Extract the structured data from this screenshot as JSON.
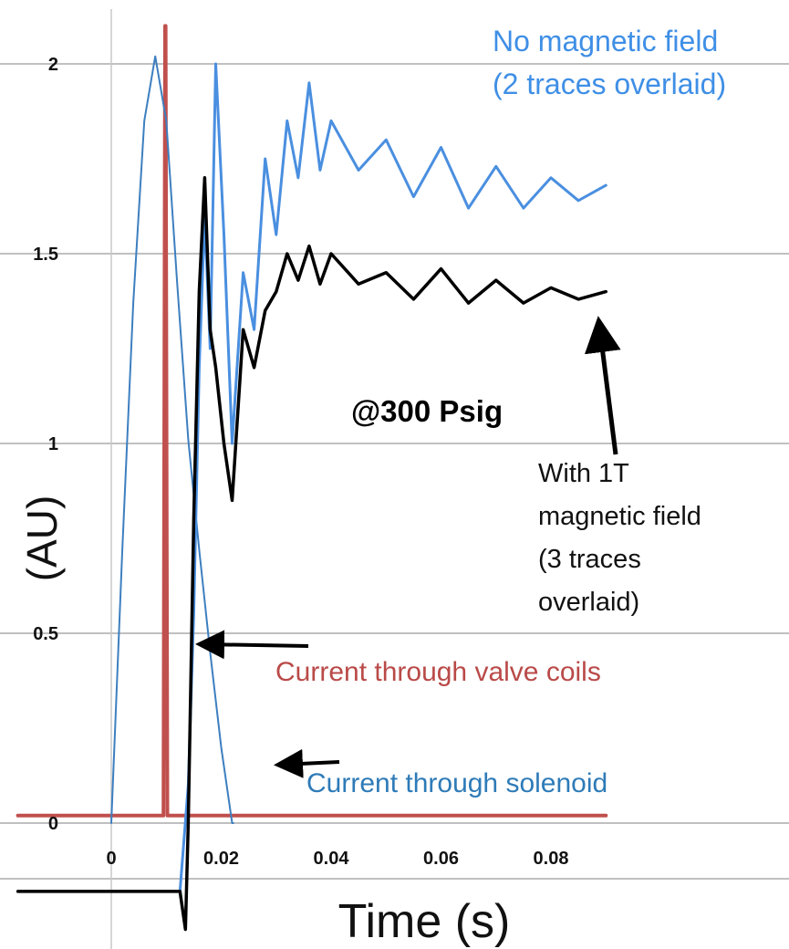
{
  "chart_data": {
    "type": "line",
    "xlabel": "Time (s)",
    "ylabel": "(AU)",
    "xlim": [
      -0.017,
      0.09
    ],
    "ylim": [
      -0.3,
      2.15
    ],
    "x_ticks": [
      "0",
      "0.02",
      "0.04",
      "0.06",
      "0.08"
    ],
    "x_tick_values": [
      0,
      0.02,
      0.04,
      0.06,
      0.08
    ],
    "y_ticks": [
      "0",
      "0.5",
      "1",
      "1.5",
      "2"
    ],
    "y_tick_values": [
      0,
      0.5,
      1,
      1.5,
      2
    ],
    "grid": true,
    "series": [
      {
        "key": "solenoid",
        "name": "Current through solenoid",
        "color": "#3d7fc0",
        "x": [
          0,
          0.002,
          0.004,
          0.006,
          0.008,
          0.01,
          0.012,
          0.014,
          0.016,
          0.018,
          0.02,
          0.022,
          0.0222
        ],
        "y": [
          0,
          0.72,
          1.37,
          1.85,
          2.02,
          1.85,
          1.42,
          1.01,
          0.72,
          0.45,
          0.2,
          0,
          0
        ]
      },
      {
        "key": "valve",
        "name": "Current through valve coils",
        "color": "#c0504d",
        "x": [
          -0.017,
          0.0095,
          0.0098,
          0.0099,
          0.0102,
          0.0103,
          0.09
        ],
        "y": [
          0.02,
          0.02,
          2.1,
          2.1,
          0.02,
          0.02,
          0.02
        ]
      },
      {
        "key": "no_field",
        "name": "No magnetic field",
        "color": "#4a8fe0",
        "x": [
          -0.017,
          0.0125,
          0.014,
          0.015,
          0.016,
          0.017,
          0.018,
          0.019,
          0.0205,
          0.022,
          0.024,
          0.026,
          0.028,
          0.03,
          0.032,
          0.034,
          0.036,
          0.038,
          0.04,
          0.045,
          0.05,
          0.055,
          0.06,
          0.065,
          0.07,
          0.075,
          0.08,
          0.085,
          0.09
        ],
        "y": [
          -0.18,
          -0.18,
          0.1,
          0.55,
          1.2,
          1.6,
          1.25,
          2.0,
          1.55,
          1.0,
          1.45,
          1.3,
          1.75,
          1.55,
          1.85,
          1.7,
          1.95,
          1.72,
          1.85,
          1.72,
          1.8,
          1.65,
          1.78,
          1.62,
          1.73,
          1.62,
          1.7,
          1.64,
          1.68
        ]
      },
      {
        "key": "with_field",
        "name": "With 1T magnetic field",
        "color": "#000000",
        "x": [
          -0.017,
          0.0125,
          0.0135,
          0.014,
          0.015,
          0.016,
          0.017,
          0.018,
          0.019,
          0.0205,
          0.022,
          0.024,
          0.026,
          0.028,
          0.03,
          0.032,
          0.034,
          0.036,
          0.038,
          0.04,
          0.045,
          0.05,
          0.055,
          0.06,
          0.065,
          0.07,
          0.075,
          0.08,
          0.085,
          0.09
        ],
        "y": [
          -0.18,
          -0.18,
          -0.28,
          0.0,
          0.8,
          1.4,
          1.7,
          1.3,
          1.2,
          1.0,
          0.85,
          1.3,
          1.2,
          1.35,
          1.4,
          1.5,
          1.43,
          1.52,
          1.42,
          1.5,
          1.42,
          1.45,
          1.38,
          1.46,
          1.37,
          1.43,
          1.37,
          1.41,
          1.38,
          1.4
        ]
      }
    ],
    "annotations": {
      "pressure": "@300 Psig",
      "no_field": [
        "No magnetic field",
        "(2 traces overlaid)"
      ],
      "with_field": [
        "With 1T",
        "magnetic field",
        "(3 traces",
        "overlaid)"
      ],
      "valve": "Current through valve coils",
      "solenoid": "Current through solenoid"
    },
    "colors": {
      "no_field_text": "#3f8fe6",
      "valve_text": "#b94a48",
      "solenoid_text": "#2e7bb8",
      "grid": "#9a9a9a"
    }
  }
}
